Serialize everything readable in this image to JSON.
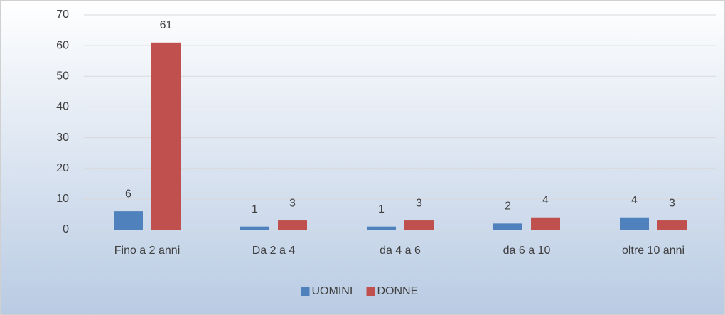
{
  "chart_data": {
    "type": "bar",
    "categories": [
      "Fino a 2 anni",
      "Da 2 a 4",
      "da 4 a 6",
      "da 6 a 10",
      "oltre 10 anni"
    ],
    "series": [
      {
        "name": "UOMINI",
        "color": "#4f81bd",
        "values": [
          6,
          1,
          1,
          2,
          4
        ]
      },
      {
        "name": "DONNE",
        "color": "#c0504d",
        "values": [
          61,
          3,
          3,
          4,
          3
        ]
      }
    ],
    "ylim": [
      0,
      70
    ],
    "yticks": [
      0,
      10,
      20,
      30,
      40,
      50,
      60,
      70
    ],
    "grid": true,
    "legend": "bottom"
  }
}
